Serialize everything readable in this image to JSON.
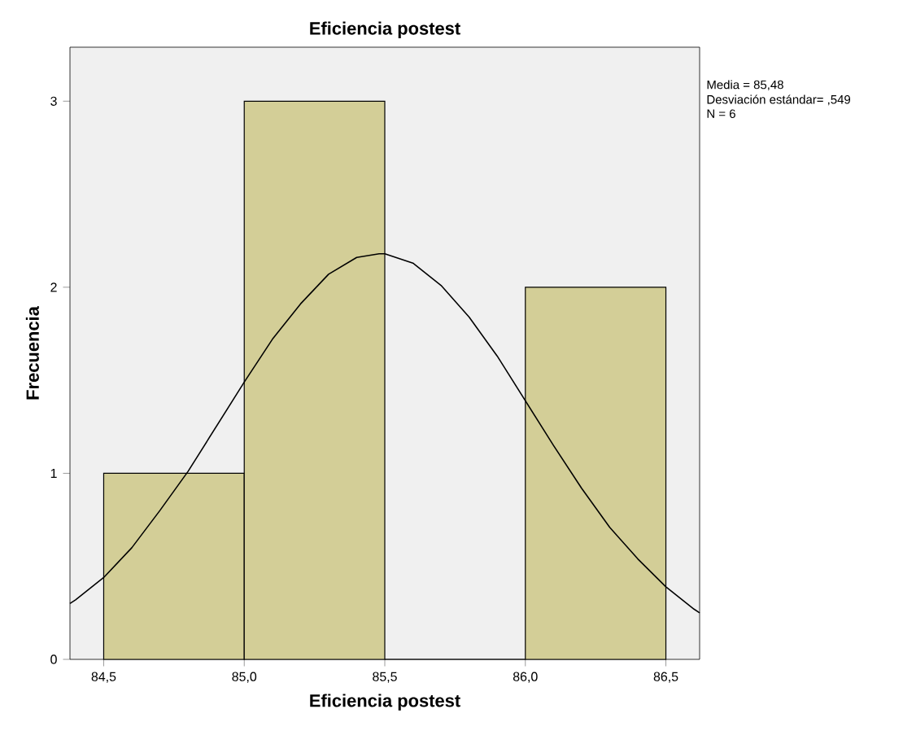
{
  "chart_data": {
    "type": "histogram",
    "title": "Eficiencia postest",
    "xlabel": "Eficiencia postest",
    "ylabel": "Frecuencia",
    "bins": [
      84.5,
      85.0,
      85.5,
      86.0,
      86.5
    ],
    "values": [
      1,
      3,
      0,
      2
    ],
    "color": "#d3ce97",
    "series": [
      {
        "type": "line",
        "color": "#000000",
        "x": [
          84.38,
          84.4,
          84.5,
          84.6,
          84.7,
          84.8,
          84.9,
          85.0,
          85.1,
          85.2,
          85.3,
          85.4,
          85.48,
          85.5,
          85.6,
          85.7,
          85.8,
          85.9,
          86.0,
          86.1,
          86.2,
          86.3,
          86.4,
          86.5,
          86.6,
          86.62
        ],
        "values": [
          0.3,
          0.32,
          0.44,
          0.6,
          0.8,
          1.01,
          1.25,
          1.49,
          1.72,
          1.91,
          2.07,
          2.16,
          2.18,
          2.18,
          2.13,
          2.01,
          1.84,
          1.63,
          1.39,
          1.15,
          0.92,
          0.71,
          0.54,
          0.39,
          0.27,
          0.25
        ]
      }
    ],
    "xlim": [
      84.38,
      86.62
    ],
    "ylim": [
      0,
      3.29
    ],
    "xticks": [
      {
        "value": 84.5,
        "label": "84,5"
      },
      {
        "value": 85.0,
        "label": "85,0"
      },
      {
        "value": 85.5,
        "label": "85,5"
      },
      {
        "value": 86.0,
        "label": "86,0"
      },
      {
        "value": 86.5,
        "label": "86,5"
      }
    ],
    "yticks": [
      0,
      1,
      2,
      3
    ],
    "annotations": [
      "Media = 85,48",
      "Desviación estándar= ,549",
      "N = 6"
    ]
  }
}
